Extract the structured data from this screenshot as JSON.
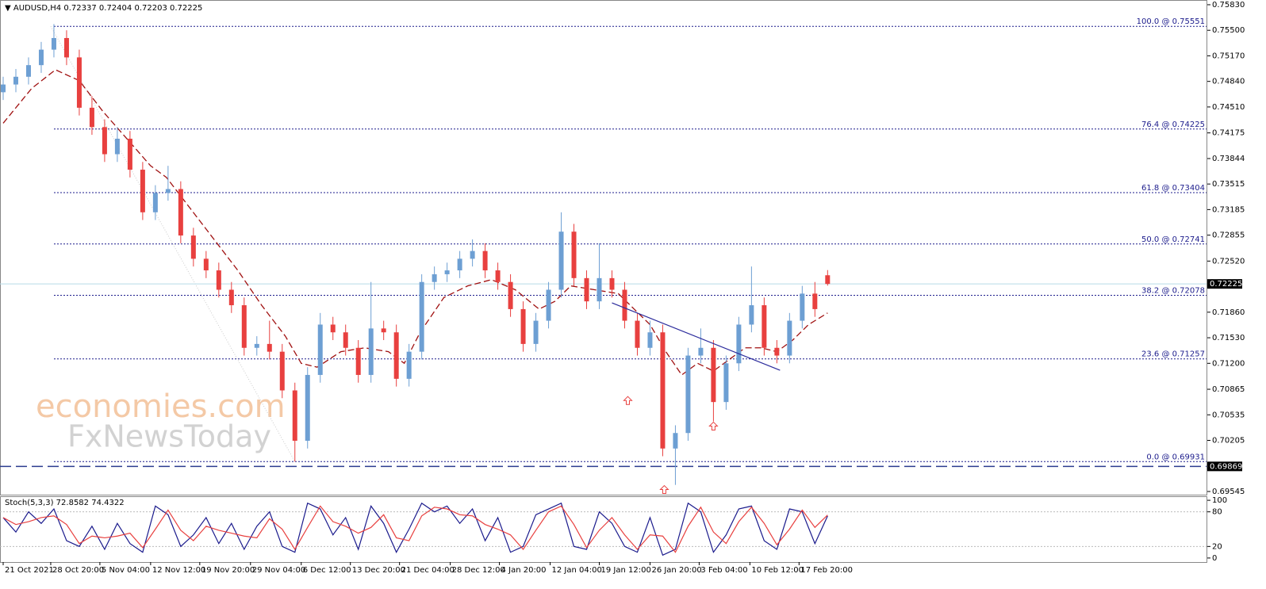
{
  "chart_data": [
    {
      "type": "candlestick",
      "symbol": "AUDUSD,H4",
      "up_color": "#6d9fd3",
      "down_color": "#e8403f",
      "xlim": [
        0,
        761
      ],
      "ylim": [
        0.69504,
        0.75891
      ],
      "xticks": [
        {
          "value": 2,
          "label": "21 Oct 2021"
        },
        {
          "value": 32,
          "label": "28 Oct 20:00"
        },
        {
          "value": 63,
          "label": "5 Nov 04:00"
        },
        {
          "value": 95,
          "label": "12 Nov 12:00"
        },
        {
          "value": 126,
          "label": "19 Nov 20:00"
        },
        {
          "value": 158,
          "label": "29 Nov 04:00"
        },
        {
          "value": 190,
          "label": "6 Dec 12:00"
        },
        {
          "value": 221,
          "label": "13 Dec 20:00"
        },
        {
          "value": 252,
          "label": "21 Dec 04:00"
        },
        {
          "value": 284,
          "label": "28 Dec 12:00"
        },
        {
          "value": 315,
          "label": "4 Jan 20:00"
        },
        {
          "value": 347,
          "label": "12 Jan 04:00"
        },
        {
          "value": 378,
          "label": "19 Jan 12:00"
        },
        {
          "value": 410,
          "label": "26 Jan 20:00"
        },
        {
          "value": 441,
          "label": "3 Feb 04:00"
        },
        {
          "value": 473,
          "label": "10 Feb 12:00"
        },
        {
          "value": 504,
          "label": "17 Feb 20:00"
        }
      ],
      "yticks": [
        {
          "value": 0.7583,
          "label": "0.75830"
        },
        {
          "value": 0.755,
          "label": "0.75500"
        },
        {
          "value": 0.7517,
          "label": "0.75170"
        },
        {
          "value": 0.7484,
          "label": "0.74840"
        },
        {
          "value": 0.7451,
          "label": "0.74510"
        },
        0.74175,
        0.73844,
        0.73515,
        0.73185,
        0.72855,
        {
          "value": 0.7252,
          "label": "0.72520"
        },
        {
          "value": 0.7186,
          "label": "0.71860"
        },
        {
          "value": 0.7153,
          "label": "0.71530"
        },
        {
          "value": 0.712,
          "label": "0.71200"
        },
        0.70865,
        0.70535,
        0.70205,
        0.69545
      ],
      "x": [
        2,
        10,
        18,
        26,
        34,
        42,
        50,
        58,
        66,
        74,
        82,
        90,
        98,
        106,
        114,
        122,
        130,
        138,
        146,
        154,
        162,
        170,
        178,
        186,
        194,
        202,
        210,
        218,
        226,
        234,
        242,
        250,
        258,
        266,
        274,
        282,
        290,
        298,
        306,
        314,
        322,
        330,
        338,
        346,
        354,
        362,
        370,
        378,
        386,
        394,
        402,
        410,
        418,
        426,
        434,
        442,
        450,
        458,
        466,
        474,
        482,
        490,
        498,
        506,
        514,
        522
      ],
      "open": [
        0.747,
        0.748,
        0.749,
        0.7505,
        0.7525,
        0.754,
        0.7515,
        0.745,
        0.7425,
        0.739,
        0.741,
        0.737,
        0.7315,
        0.734,
        0.7345,
        0.7285,
        0.7255,
        0.724,
        0.7215,
        0.7195,
        0.714,
        0.7145,
        0.7135,
        0.7085,
        0.702,
        0.7105,
        0.717,
        0.716,
        0.714,
        0.7105,
        0.7165,
        0.716,
        0.71,
        0.7135,
        0.7225,
        0.7235,
        0.724,
        0.7255,
        0.7265,
        0.724,
        0.7225,
        0.719,
        0.7145,
        0.7175,
        0.7215,
        0.729,
        0.723,
        0.72,
        0.723,
        0.7215,
        0.7175,
        0.714,
        0.716,
        0.701,
        0.703,
        0.713,
        0.714,
        0.707,
        0.712,
        0.717,
        0.7195,
        0.714,
        0.713,
        0.7175,
        0.721,
        0.72337
      ],
      "high": [
        0.749,
        0.75,
        0.7515,
        0.7535,
        0.7558,
        0.755,
        0.7525,
        0.7465,
        0.7435,
        0.7425,
        0.742,
        0.738,
        0.735,
        0.7375,
        0.7355,
        0.7295,
        0.7265,
        0.725,
        0.7225,
        0.7205,
        0.7155,
        0.7175,
        0.7145,
        0.7095,
        0.7115,
        0.7185,
        0.718,
        0.717,
        0.715,
        0.7225,
        0.7175,
        0.717,
        0.7145,
        0.7235,
        0.7245,
        0.725,
        0.7265,
        0.728,
        0.7275,
        0.725,
        0.7235,
        0.72,
        0.7185,
        0.7225,
        0.7315,
        0.73,
        0.724,
        0.7275,
        0.724,
        0.7225,
        0.7185,
        0.7175,
        0.717,
        0.704,
        0.714,
        0.7165,
        0.715,
        0.713,
        0.718,
        0.7245,
        0.7205,
        0.715,
        0.7185,
        0.722,
        0.7225,
        0.72404
      ],
      "low": [
        0.746,
        0.747,
        0.748,
        0.7495,
        0.7515,
        0.7505,
        0.744,
        0.7415,
        0.738,
        0.738,
        0.736,
        0.7305,
        0.7305,
        0.733,
        0.7275,
        0.7245,
        0.723,
        0.7205,
        0.7185,
        0.713,
        0.713,
        0.7125,
        0.7075,
        0.6993,
        0.701,
        0.7095,
        0.715,
        0.713,
        0.7095,
        0.7095,
        0.715,
        0.709,
        0.709,
        0.7125,
        0.7215,
        0.7225,
        0.723,
        0.7245,
        0.723,
        0.7215,
        0.718,
        0.7135,
        0.7135,
        0.7165,
        0.7205,
        0.722,
        0.719,
        0.719,
        0.7205,
        0.7165,
        0.713,
        0.713,
        0.7,
        0.6963,
        0.702,
        0.712,
        0.7045,
        0.706,
        0.711,
        0.716,
        0.713,
        0.712,
        0.712,
        0.7165,
        0.718,
        0.72203
      ],
      "close": [
        0.748,
        0.749,
        0.7505,
        0.7525,
        0.754,
        0.7515,
        0.745,
        0.7425,
        0.739,
        0.741,
        0.737,
        0.7315,
        0.734,
        0.7345,
        0.7285,
        0.7255,
        0.724,
        0.7215,
        0.7195,
        0.714,
        0.7145,
        0.7135,
        0.7085,
        0.702,
        0.7105,
        0.717,
        0.716,
        0.714,
        0.7105,
        0.7165,
        0.716,
        0.71,
        0.7135,
        0.7225,
        0.7235,
        0.724,
        0.7255,
        0.7265,
        0.724,
        0.7225,
        0.719,
        0.7145,
        0.7175,
        0.7215,
        0.729,
        0.723,
        0.72,
        0.723,
        0.7215,
        0.7175,
        0.714,
        0.716,
        0.701,
        0.703,
        0.713,
        0.714,
        0.707,
        0.712,
        0.717,
        0.7195,
        0.714,
        0.713,
        0.7175,
        0.721,
        0.719,
        0.72225
      ],
      "ma": {
        "color": "#a01010",
        "x": [
          2,
          20,
          35,
          50,
          65,
          80,
          95,
          105,
          120,
          135,
          150,
          165,
          180,
          190,
          200,
          215,
          230,
          245,
          255,
          265,
          280,
          295,
          310,
          325,
          340,
          350,
          360,
          375,
          390,
          400,
          410,
          420,
          430,
          440,
          450,
          460,
          470,
          480,
          490,
          500,
          510,
          522
        ],
        "values": [
          0.743,
          0.7475,
          0.7499,
          0.7485,
          0.7445,
          0.741,
          0.7375,
          0.736,
          0.732,
          0.728,
          0.724,
          0.7195,
          0.7155,
          0.712,
          0.7115,
          0.7135,
          0.714,
          0.7135,
          0.712,
          0.716,
          0.7205,
          0.722,
          0.7228,
          0.7215,
          0.719,
          0.72,
          0.722,
          0.7215,
          0.721,
          0.719,
          0.717,
          0.7135,
          0.7105,
          0.712,
          0.711,
          0.7125,
          0.714,
          0.714,
          0.7135,
          0.715,
          0.717,
          0.7185
        ]
      },
      "fib_levels": [
        {
          "value": 0.75551,
          "label": "100.0 @ 0.75551"
        },
        {
          "value": 0.74225,
          "label": "76.4 @ 0.74225"
        },
        {
          "value": 0.73404,
          "label": "61.8 @ 0.73404"
        },
        {
          "value": 0.72741,
          "label": "50.0 @ 0.72741"
        },
        {
          "value": 0.72078,
          "label": "38.2 @ 0.72078"
        },
        {
          "value": 0.71257,
          "label": "23.6 @ 0.71257"
        },
        {
          "value": 0.69931,
          "label": "0.0 @ 0.69931"
        }
      ],
      "fib_color": "#1c1c8c",
      "fib_diagonal": {
        "x": [
          32,
          186
        ],
        "y": [
          0.75551,
          0.69931
        ]
      },
      "hline": {
        "value": 0.69869,
        "color": "#2b3b8f"
      },
      "trendline": {
        "color": "#2b2b9c",
        "x": [
          386,
          492
        ],
        "y": [
          0.7198,
          0.7111
        ]
      },
      "arrows": {
        "color": "#e8403f",
        "x": [
          396,
          419,
          450
        ],
        "y": [
          0.7072,
          0.6957,
          0.7039
        ]
      },
      "watermark": [
        "economies.com",
        "FxNewsToday"
      ]
    },
    {
      "type": "line",
      "title": "Stoch(5,3,3)",
      "xlim": [
        0,
        761
      ],
      "ylim": [
        -7,
        107
      ],
      "yticks": [
        100,
        80,
        20,
        0
      ],
      "levels": [
        80,
        20
      ],
      "x": [
        2,
        10,
        18,
        26,
        34,
        42,
        50,
        58,
        66,
        74,
        82,
        90,
        98,
        106,
        114,
        122,
        130,
        138,
        146,
        154,
        162,
        170,
        178,
        186,
        194,
        202,
        210,
        218,
        226,
        234,
        242,
        250,
        258,
        266,
        274,
        282,
        290,
        298,
        306,
        314,
        322,
        330,
        338,
        346,
        354,
        362,
        370,
        378,
        386,
        394,
        402,
        410,
        418,
        426,
        434,
        442,
        450,
        458,
        466,
        474,
        482,
        490,
        498,
        506,
        514,
        522
      ],
      "series": [
        {
          "color": "#1a1a8c",
          "values": [
            70,
            45,
            80,
            60,
            85,
            30,
            20,
            55,
            15,
            60,
            25,
            10,
            90,
            75,
            20,
            40,
            70,
            25,
            60,
            15,
            55,
            80,
            20,
            10,
            95,
            85,
            40,
            70,
            15,
            90,
            60,
            10,
            50,
            95,
            80,
            90,
            60,
            85,
            30,
            70,
            10,
            20,
            75,
            85,
            95,
            20,
            15,
            80,
            60,
            20,
            10,
            70,
            5,
            15,
            95,
            80,
            10,
            40,
            85,
            90,
            30,
            15,
            85,
            80,
            25,
            72.8582
          ]
        },
        {
          "color": "#e8403f",
          "values": [
            70,
            58,
            63,
            70,
            73,
            58,
            25,
            38,
            35,
            38,
            43,
            18,
            50,
            83,
            48,
            30,
            55,
            48,
            43,
            38,
            35,
            68,
            50,
            15,
            53,
            90,
            63,
            55,
            43,
            53,
            75,
            35,
            30,
            73,
            88,
            85,
            75,
            73,
            58,
            50,
            40,
            15,
            48,
            80,
            90,
            58,
            18,
            48,
            70,
            40,
            15,
            40,
            38,
            10,
            55,
            88,
            45,
            25,
            63,
            88,
            60,
            23,
            50,
            83,
            53,
            74.4322
          ]
        }
      ]
    }
  ]
}
